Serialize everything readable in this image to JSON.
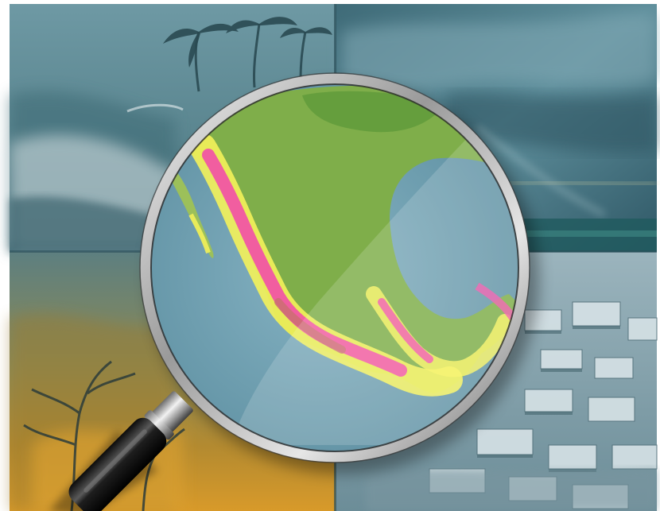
{
  "scene": {
    "panels": [
      {
        "icon": "hurricane-palms-panel"
      },
      {
        "icon": "tornado-storm-panel"
      },
      {
        "icon": "wildfire-panel"
      },
      {
        "icon": "flood-town-panel"
      }
    ],
    "centerpiece": {
      "icon": "magnifying-glass-icon"
    },
    "map": {
      "icon": "mexico-heat-map"
    },
    "colors": {
      "tint": "#4d7f8c",
      "ocean": "#6e9fb0",
      "land_green": "#7fae4a",
      "hot_yellow": "#f4f25a",
      "hot_pink": "#f24fa8",
      "fire_orange": "#c8962a"
    }
  }
}
